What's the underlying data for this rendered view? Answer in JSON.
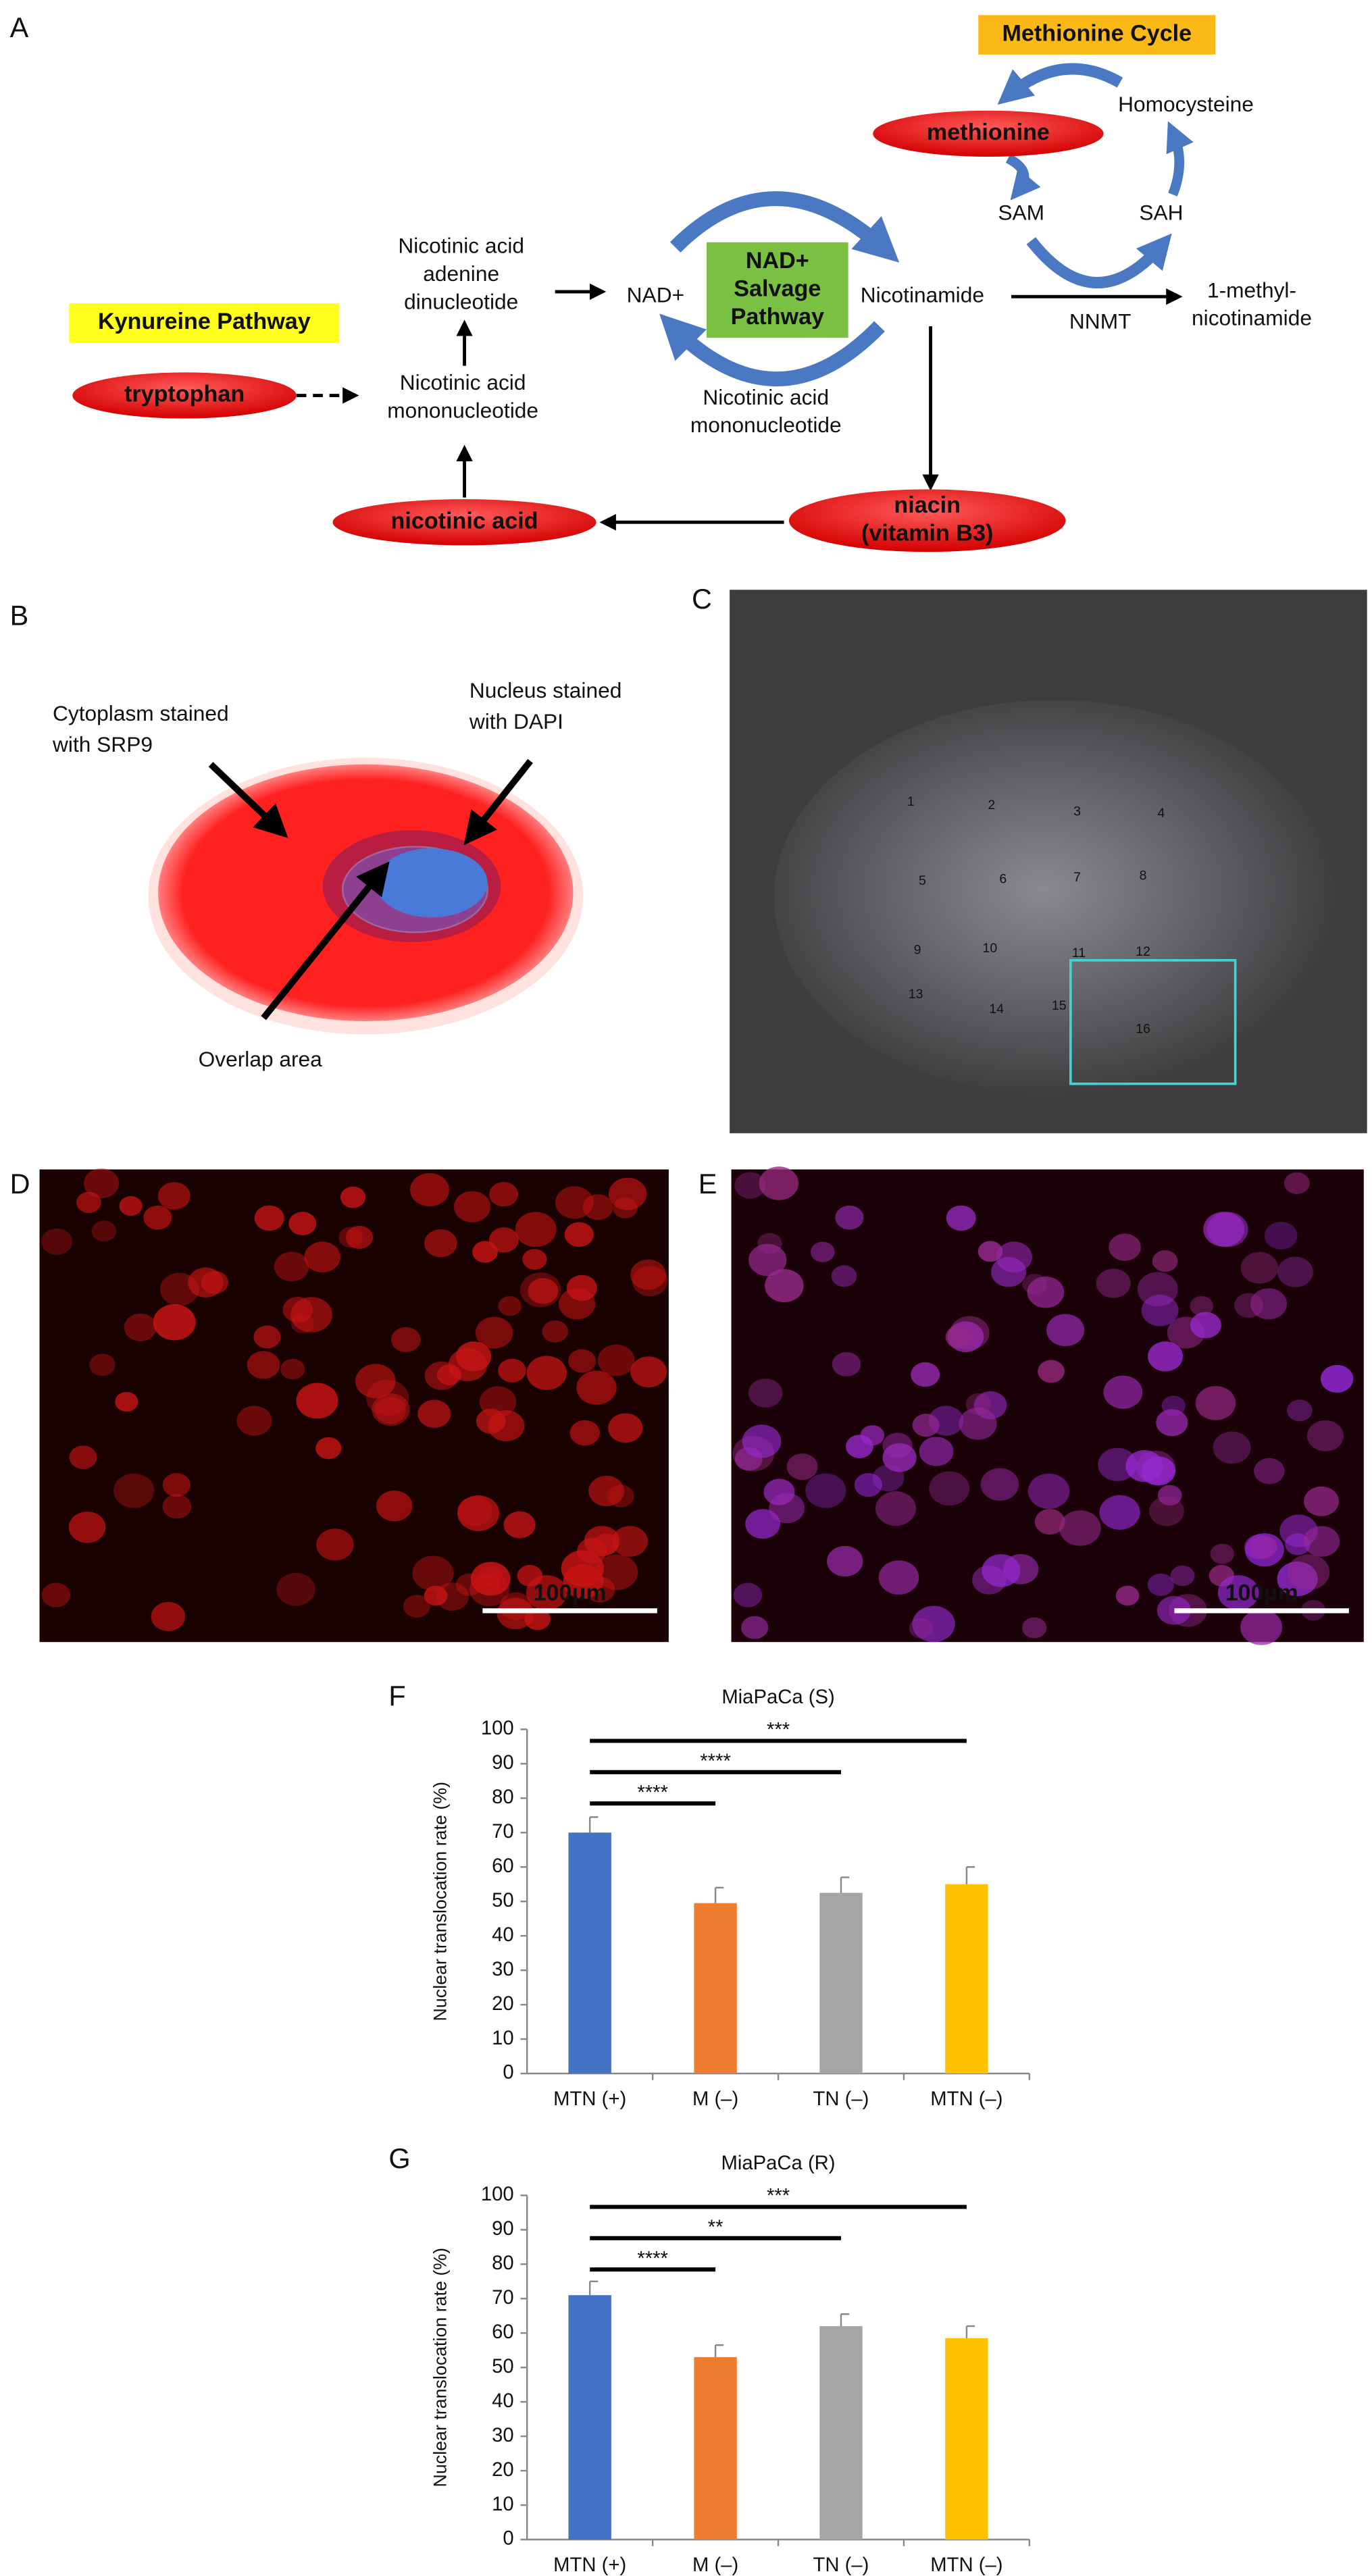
{
  "panel_labels": [
    "A",
    "B",
    "C",
    "D",
    "E",
    "F",
    "G"
  ],
  "diagram": {
    "nodes": [
      {
        "lines": [
          "Methionine Cycle"
        ]
      },
      {
        "lines": [
          "methionine"
        ]
      },
      {
        "lines": [
          "Homocysteine"
        ]
      },
      {
        "lines": [
          "SAM"
        ]
      },
      {
        "lines": [
          "SAH"
        ]
      },
      {
        "lines": [
          "NNMT"
        ]
      },
      {
        "lines": [
          "1-methyl-",
          "nicotinamide"
        ]
      },
      {
        "lines": [
          "Nicotinic acid",
          "adenine",
          "dinucleotide"
        ]
      },
      {
        "lines": [
          "NAD+"
        ]
      },
      {
        "lines": [
          "NAD+",
          "Salvage",
          "Pathway"
        ]
      },
      {
        "lines": [
          "Nicotinamide"
        ]
      },
      {
        "lines": [
          "Kynureine Pathway"
        ]
      },
      {
        "lines": [
          "tryptophan"
        ]
      },
      {
        "lines": [
          "Nicotinic acid",
          "mononucleotide"
        ]
      },
      {
        "lines": [
          "Nicotinic acid",
          "mononucleotide"
        ]
      },
      {
        "lines": [
          "nicotinic acid"
        ]
      },
      {
        "lines": [
          "niacin",
          "(vitamin B3)"
        ]
      }
    ]
  },
  "cell_schematic": {
    "labels": [
      {
        "lines": [
          "Cytoplasm stained",
          "with SRP9"
        ]
      },
      {
        "lines": [
          "Nucleus stained",
          "with DAPI"
        ]
      },
      {
        "lines": [
          "Overlap area"
        ]
      }
    ]
  },
  "tissue_image": {
    "field_labels": [
      "1",
      "2",
      "3",
      "4",
      "5",
      "6",
      "7",
      "8",
      "9",
      "10",
      "11",
      "12",
      "13",
      "14",
      "15",
      "16"
    ]
  },
  "micrographs": [
    {
      "scale_bar": "100μm"
    },
    {
      "scale_bar": "100μm"
    }
  ],
  "chart_data": [
    {
      "type": "bar",
      "title": "MiaPaCa (S)",
      "y_label": "Nuclear translocation rate (%)",
      "categories": [
        "MTN (+)",
        "M (–)",
        "TN (–)",
        "MTN (–)"
      ],
      "values": [
        70,
        49.5,
        52.5,
        55
      ],
      "errors": [
        4.5,
        4.5,
        4.5,
        5
      ],
      "colors": [
        "#4472c4",
        "#ed7d31",
        "#a5a5a5",
        "#ffc000"
      ],
      "significance": [
        "****",
        "****",
        "***"
      ],
      "ylim": [
        0,
        100
      ],
      "yticks": [
        0,
        10,
        20,
        30,
        40,
        50,
        60,
        70,
        80,
        90,
        100
      ]
    },
    {
      "type": "bar",
      "title": "MiaPaCa (R)",
      "y_label": "Nuclear translocation rate (%)",
      "categories": [
        "MTN (+)",
        "M (–)",
        "TN (–)",
        "MTN (–)"
      ],
      "values": [
        71,
        53,
        62,
        58.5
      ],
      "errors": [
        4,
        3.5,
        3.5,
        3.5
      ],
      "colors": [
        "#4472c4",
        "#ed7d31",
        "#a5a5a5",
        "#ffc000"
      ],
      "significance": [
        "****",
        "**",
        "***"
      ],
      "ylim": [
        0,
        100
      ],
      "yticks": [
        0,
        10,
        20,
        30,
        40,
        50,
        60,
        70,
        80,
        90,
        100
      ]
    }
  ]
}
